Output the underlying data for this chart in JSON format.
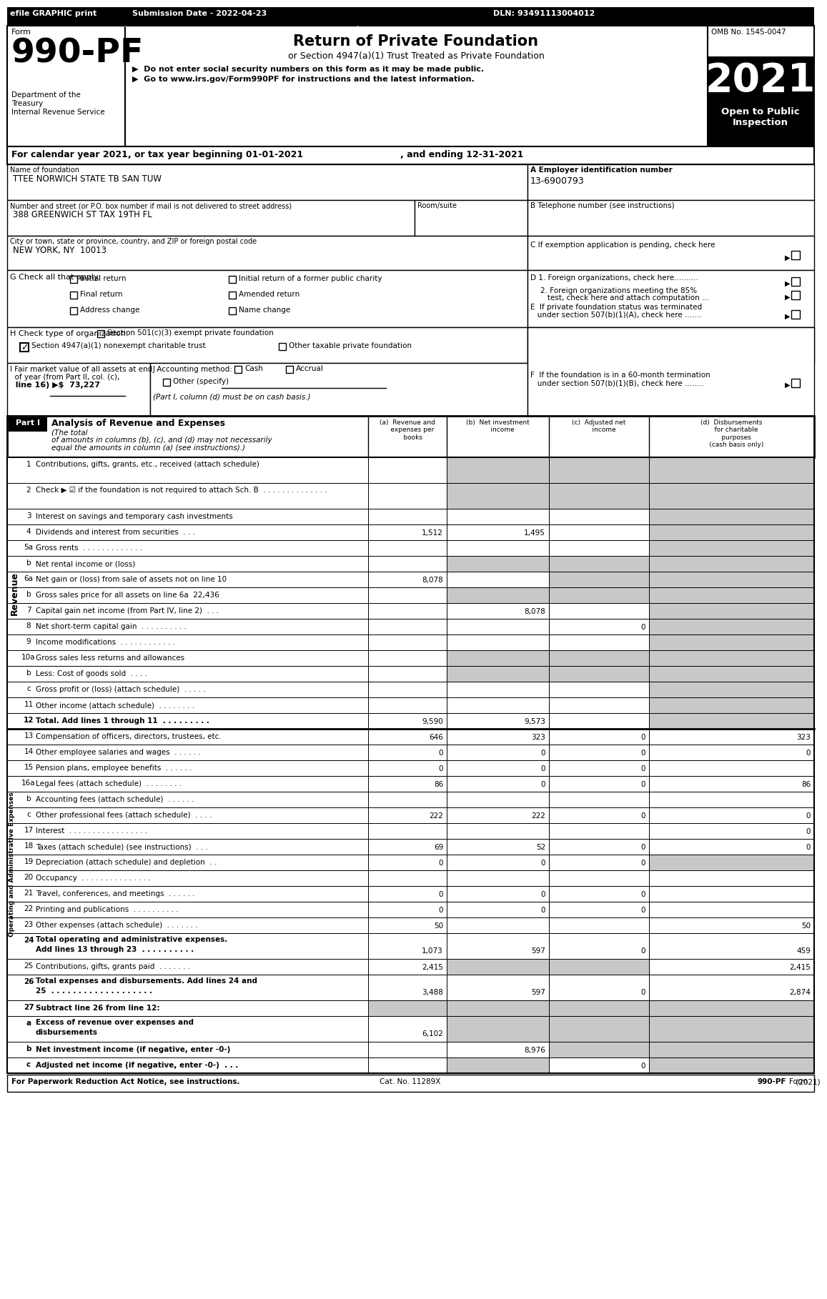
{
  "header_bar": {
    "efile": "efile GRAPHIC print",
    "submission": "Submission Date - 2022-04-23",
    "dln": "DLN: 93491113004012"
  },
  "form_number": "990-PF",
  "title": "Return of Private Foundation",
  "subtitle": "or Section 4947(a)(1) Trust Treated as Private Foundation",
  "bullet1": "▶  Do not enter social security numbers on this form as it may be made public.",
  "bullet2": "▶  Go to www.irs.gov/Form990PF for instructions and the latest information.",
  "year": "2021",
  "open_to_public": "Open to Public\nInspection",
  "omb": "OMB No. 1545-0047",
  "cal_year_line": "For calendar year 2021, or tax year beginning 01-01-2021",
  "ending_line": ", and ending 12-31-2021",
  "name_label": "Name of foundation",
  "name_value": "TTEE NORWICH STATE TB SAN TUW",
  "ein_label": "A Employer identification number",
  "ein_value": "13-6900793",
  "addr_label": "Number and street (or P.O. box number if mail is not delivered to street address)",
  "addr_value": "388 GREENWICH ST TAX 19TH FL",
  "room_label": "Room/suite",
  "phone_label": "B Telephone number (see instructions)",
  "city_label": "City or town, state or province, country, and ZIP or foreign postal code",
  "city_value": "NEW YORK, NY  10013",
  "col_a": "Revenue and\nexpenses per\nbooks",
  "col_b": "Net investment\nincome",
  "col_c": "Adjusted net\nincome",
  "col_d": "Disbursements\nfor charitable\npurposes\n(cash basis only)",
  "rows": [
    {
      "num": "1",
      "label": "Contributions, gifts, grants, etc., received (attach schedule)",
      "a": "",
      "b": "",
      "c": "",
      "d": "",
      "gray_b": true,
      "gray_c": true,
      "gray_d": true,
      "two_line": true
    },
    {
      "num": "2",
      "label": "Check ▶ ☑ if the foundation is not required to attach Sch. B  . . . . . . . . . . . . . .",
      "a": "",
      "b": "",
      "c": "",
      "d": "",
      "gray_b": true,
      "gray_c": true,
      "gray_d": true,
      "two_line": true
    },
    {
      "num": "3",
      "label": "Interest on savings and temporary cash investments",
      "a": "",
      "b": "",
      "c": "",
      "d": "",
      "gray_b": false,
      "gray_c": false,
      "gray_d": true
    },
    {
      "num": "4",
      "label": "Dividends and interest from securities  . . .",
      "a": "1,512",
      "b": "1,495",
      "c": "",
      "d": "",
      "gray_b": false,
      "gray_c": false,
      "gray_d": true
    },
    {
      "num": "5a",
      "label": "Gross rents  . . . . . . . . . . . . .",
      "a": "",
      "b": "",
      "c": "",
      "d": "",
      "gray_b": false,
      "gray_c": false,
      "gray_d": true
    },
    {
      "num": "b",
      "label": "Net rental income or (loss)",
      "a": "",
      "b": "",
      "c": "",
      "d": "",
      "gray_b": true,
      "gray_c": true,
      "gray_d": true,
      "underline_label": true
    },
    {
      "num": "6a",
      "label": "Net gain or (loss) from sale of assets not on line 10",
      "a": "8,078",
      "b": "",
      "c": "",
      "d": "",
      "gray_b": false,
      "gray_c": true,
      "gray_d": true
    },
    {
      "num": "b",
      "label": "Gross sales price for all assets on line 6a  22,436",
      "a": "",
      "b": "",
      "c": "",
      "d": "",
      "gray_b": true,
      "gray_c": true,
      "gray_d": true
    },
    {
      "num": "7",
      "label": "Capital gain net income (from Part IV, line 2)  . . .",
      "a": "",
      "b": "8,078",
      "c": "",
      "d": "",
      "gray_b": false,
      "gray_c": false,
      "gray_d": true
    },
    {
      "num": "8",
      "label": "Net short-term capital gain  . . . . . . . . . .",
      "a": "",
      "b": "",
      "c": "0",
      "d": "",
      "gray_b": false,
      "gray_c": false,
      "gray_d": true
    },
    {
      "num": "9",
      "label": "Income modifications  . . . . . . . . . . . .",
      "a": "",
      "b": "",
      "c": "",
      "d": "",
      "gray_b": false,
      "gray_c": false,
      "gray_d": true
    },
    {
      "num": "10a",
      "label": "Gross sales less returns and allowances",
      "a": "",
      "b": "",
      "c": "",
      "d": "",
      "gray_b": true,
      "gray_c": true,
      "gray_d": true
    },
    {
      "num": "b",
      "label": "Less: Cost of goods sold  . . . .",
      "a": "",
      "b": "",
      "c": "",
      "d": "",
      "gray_b": true,
      "gray_c": true,
      "gray_d": true
    },
    {
      "num": "c",
      "label": "Gross profit or (loss) (attach schedule)  . . . . .",
      "a": "",
      "b": "",
      "c": "",
      "d": "",
      "gray_b": false,
      "gray_c": false,
      "gray_d": true
    },
    {
      "num": "11",
      "label": "Other income (attach schedule)  . . . . . . . .",
      "a": "",
      "b": "",
      "c": "",
      "d": "",
      "gray_b": false,
      "gray_c": false,
      "gray_d": true
    },
    {
      "num": "12",
      "label": "Total. Add lines 1 through 11  . . . . . . . . .",
      "a": "9,590",
      "b": "9,573",
      "c": "",
      "d": "",
      "gray_b": false,
      "gray_c": false,
      "gray_d": true,
      "bold": true
    },
    {
      "num": "13",
      "label": "Compensation of officers, directors, trustees, etc.",
      "a": "646",
      "b": "323",
      "c": "0",
      "d": "323",
      "gray_b": false,
      "gray_c": false,
      "gray_d": false
    },
    {
      "num": "14",
      "label": "Other employee salaries and wages  . . . . . .",
      "a": "0",
      "b": "0",
      "c": "0",
      "d": "0",
      "gray_b": false,
      "gray_c": false,
      "gray_d": false
    },
    {
      "num": "15",
      "label": "Pension plans, employee benefits  . . . . . .",
      "a": "0",
      "b": "0",
      "c": "0",
      "d": "",
      "gray_b": false,
      "gray_c": false,
      "gray_d": false
    },
    {
      "num": "16a",
      "label": "Legal fees (attach schedule)  . . . . . . . .",
      "a": "86",
      "b": "0",
      "c": "0",
      "d": "86",
      "gray_b": false,
      "gray_c": false,
      "gray_d": false
    },
    {
      "num": "b",
      "label": "Accounting fees (attach schedule)  . . . . . .",
      "a": "",
      "b": "",
      "c": "",
      "d": "",
      "gray_b": false,
      "gray_c": false,
      "gray_d": false
    },
    {
      "num": "c",
      "label": "Other professional fees (attach schedule)  . . . .",
      "a": "222",
      "b": "222",
      "c": "0",
      "d": "0",
      "gray_b": false,
      "gray_c": false,
      "gray_d": false
    },
    {
      "num": "17",
      "label": "Interest  . . . . . . . . . . . . . . . . .",
      "a": "",
      "b": "",
      "c": "",
      "d": "0",
      "gray_b": false,
      "gray_c": false,
      "gray_d": false
    },
    {
      "num": "18",
      "label": "Taxes (attach schedule) (see instructions)  . . .",
      "a": "69",
      "b": "52",
      "c": "0",
      "d": "0",
      "gray_b": false,
      "gray_c": false,
      "gray_d": false
    },
    {
      "num": "19",
      "label": "Depreciation (attach schedule) and depletion  . .",
      "a": "0",
      "b": "0",
      "c": "0",
      "d": "",
      "gray_b": false,
      "gray_c": false,
      "gray_d": true
    },
    {
      "num": "20",
      "label": "Occupancy  . . . . . . . . . . . . . . .",
      "a": "",
      "b": "",
      "c": "",
      "d": "",
      "gray_b": false,
      "gray_c": false,
      "gray_d": false
    },
    {
      "num": "21",
      "label": "Travel, conferences, and meetings  . . . . . .",
      "a": "0",
      "b": "0",
      "c": "0",
      "d": "",
      "gray_b": false,
      "gray_c": false,
      "gray_d": false
    },
    {
      "num": "22",
      "label": "Printing and publications  . . . . . . . . . .",
      "a": "0",
      "b": "0",
      "c": "0",
      "d": "",
      "gray_b": false,
      "gray_c": false,
      "gray_d": false
    },
    {
      "num": "23",
      "label": "Other expenses (attach schedule)  . . . . . . .",
      "a": "50",
      "b": "",
      "c": "",
      "d": "50",
      "gray_b": false,
      "gray_c": false,
      "gray_d": false
    },
    {
      "num": "24",
      "label_line1": "Total operating and administrative expenses.",
      "label_line2": "Add lines 13 through 23  . . . . . . . . . .",
      "a": "1,073",
      "b": "597",
      "c": "0",
      "d": "459",
      "gray_b": false,
      "gray_c": false,
      "gray_d": false,
      "bold": true,
      "two_line": true
    },
    {
      "num": "25",
      "label": "Contributions, gifts, grants paid  . . . . . . .",
      "a": "2,415",
      "b": "",
      "c": "",
      "d": "2,415",
      "gray_b": true,
      "gray_c": true,
      "gray_d": false
    },
    {
      "num": "26",
      "label_line1": "Total expenses and disbursements. Add lines 24 and",
      "label_line2": "25  . . . . . . . . . . . . . . . . . . .",
      "a": "3,488",
      "b": "597",
      "c": "0",
      "d": "2,874",
      "gray_b": false,
      "gray_c": false,
      "gray_d": false,
      "bold": true,
      "two_line": true
    },
    {
      "num": "27",
      "label": "Subtract line 26 from line 12:",
      "a": "",
      "b": "",
      "c": "",
      "d": "",
      "gray_b": true,
      "gray_c": true,
      "gray_d": true,
      "bold": true,
      "all_gray_except_label": true
    },
    {
      "num": "a",
      "label_line1": "Excess of revenue over expenses and",
      "label_line2": "disbursements",
      "a": "6,102",
      "b": "",
      "c": "",
      "d": "",
      "gray_b": true,
      "gray_c": true,
      "gray_d": true,
      "bold": true,
      "two_line": true
    },
    {
      "num": "b",
      "label": "Net investment income (if negative, enter -0-)",
      "a": "",
      "b": "8,976",
      "c": "",
      "d": "",
      "gray_b": false,
      "gray_c": true,
      "gray_d": true,
      "bold": true
    },
    {
      "num": "c",
      "label": "Adjusted net income (if negative, enter -0-)  . . .",
      "a": "",
      "b": "",
      "c": "0",
      "d": "",
      "gray_b": true,
      "gray_c": false,
      "gray_d": true,
      "bold": true
    }
  ],
  "footer1": "For Paperwork Reduction Act Notice, see instructions.",
  "footer2": "Cat. No. 11289X",
  "footer3": "Form 990-PF (2021)",
  "gray_color": "#c8c8c8"
}
